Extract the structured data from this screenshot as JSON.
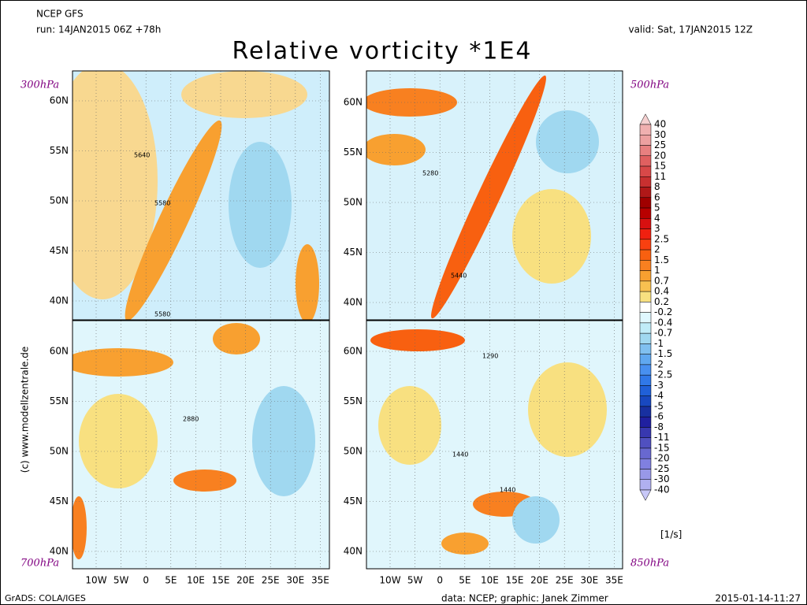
{
  "header": {
    "model": "NCEP GFS",
    "run": "run: 14JAN2015 06Z +78h",
    "valid": "valid: Sat, 17JAN2015 12Z",
    "title": "Relative vorticity *1E4"
  },
  "panels": [
    {
      "level": "300hPa",
      "contour_labels": [
        "5640",
        "5580",
        "5580"
      ]
    },
    {
      "level": "500hPa",
      "contour_labels": [
        "5280",
        "5440"
      ]
    },
    {
      "level": "700hPa",
      "contour_labels": [
        "2880"
      ]
    },
    {
      "level": "850hPa",
      "contour_labels": [
        "1290",
        "1440",
        "1440"
      ]
    }
  ],
  "lat_labels": [
    "60N",
    "55N",
    "50N",
    "45N",
    "40N"
  ],
  "lon_labels": [
    "10W",
    "5W",
    "0",
    "5E",
    "10E",
    "15E",
    "20E",
    "25E",
    "30E",
    "35E"
  ],
  "colorbar": {
    "levels": [
      40,
      30,
      25,
      20,
      15,
      11,
      8,
      6,
      5,
      4,
      3,
      2.5,
      2,
      1.5,
      1,
      0.7,
      0.4,
      0.2,
      -0.2,
      -0.4,
      -0.7,
      -1,
      -1.5,
      -2,
      -2.5,
      -3,
      -4,
      -5,
      -6,
      -8,
      -11,
      -15,
      -20,
      -25,
      -30,
      -40
    ],
    "colors": [
      "#f5d0d0",
      "#f0b0b0",
      "#eda0a0",
      "#e88080",
      "#e06060",
      "#d84848",
      "#c83030",
      "#b01818",
      "#a00000",
      "#b80000",
      "#d81010",
      "#f02010",
      "#f84010",
      "#f86010",
      "#f88020",
      "#f8a030",
      "#f8c050",
      "#f8e080",
      "#ffffff",
      "#e0f8ff",
      "#c0ecf8",
      "#a0d8f0",
      "#80c0f0",
      "#60a8f0",
      "#4890f0",
      "#3078e8",
      "#2060d8",
      "#1848c0",
      "#1830a0",
      "#2020a0",
      "#3838b0",
      "#5050c0",
      "#6868d0",
      "#8080e0",
      "#9898e8",
      "#b0b0f0",
      "#c8c8f8"
    ],
    "unit": "[1/s]"
  },
  "side_text": "(c) www.modellzentrale.de",
  "footer": {
    "left": "GrADS: COLA/IGES",
    "center": "data: NCEP; graphic: Janek Zimmer",
    "right": "2015-01-14-11:27"
  }
}
